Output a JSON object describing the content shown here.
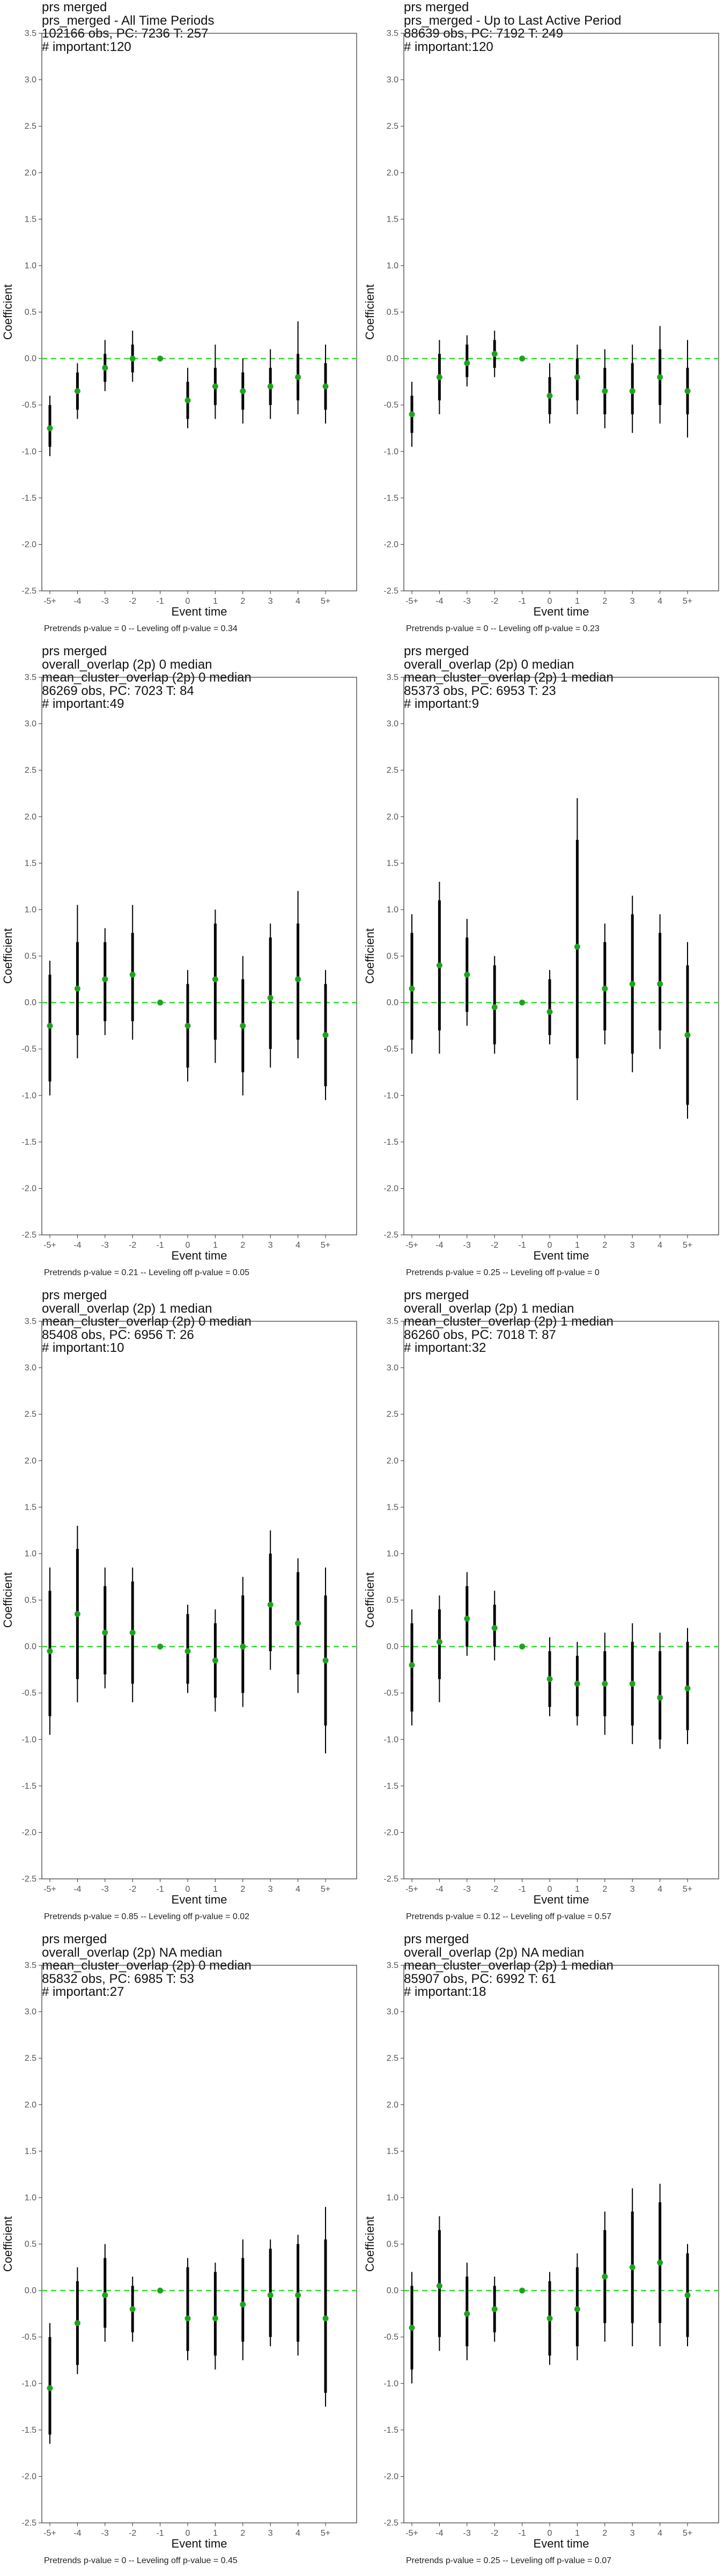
{
  "chart_data": [
    {
      "type": "scatter",
      "subtype": "event-study-coefficient-plot",
      "title_lines": [
        "prs merged",
        "prs_merged - All Time Periods",
        "102166 obs, PC: 7236 T: 257",
        "# important:120"
      ],
      "caption": "Pretrends p-value = 0 -- Leveling off p-value = 0.34",
      "xlabel": "Event time",
      "ylabel": "Coefficient",
      "categories": [
        "-5+",
        "-4",
        "-3",
        "-2",
        "-1",
        "0",
        "1",
        "2",
        "3",
        "4",
        "5+"
      ],
      "ylim": [
        -2.5,
        3.5
      ],
      "yticks": [
        "3.5",
        "3.0",
        "2.5",
        "2.0",
        "1.5",
        "1.0",
        "0.5",
        "0.0",
        "-0.5",
        "-1.0",
        "-1.5",
        "-2.0",
        "-2.5"
      ],
      "reference_line": 0,
      "estimates": [
        -0.75,
        -0.35,
        -0.1,
        0.0,
        0.0,
        -0.45,
        -0.3,
        -0.35,
        -0.3,
        -0.2,
        -0.3
      ],
      "ci_inner": [
        [
          -0.95,
          -0.5
        ],
        [
          -0.55,
          -0.15
        ],
        [
          -0.25,
          0.05
        ],
        [
          -0.15,
          0.15
        ],
        [
          0.0,
          0.0
        ],
        [
          -0.65,
          -0.25
        ],
        [
          -0.5,
          -0.1
        ],
        [
          -0.55,
          -0.15
        ],
        [
          -0.5,
          -0.1
        ],
        [
          -0.45,
          0.05
        ],
        [
          -0.55,
          -0.05
        ]
      ],
      "ci_outer": [
        [
          -1.05,
          -0.4
        ],
        [
          -0.65,
          -0.05
        ],
        [
          -0.35,
          0.2
        ],
        [
          -0.25,
          0.3
        ],
        [
          0.0,
          0.0
        ],
        [
          -0.75,
          -0.1
        ],
        [
          -0.65,
          0.15
        ],
        [
          -0.7,
          0.0
        ],
        [
          -0.65,
          0.1
        ],
        [
          -0.6,
          0.4
        ],
        [
          -0.7,
          0.15
        ]
      ]
    },
    {
      "type": "scatter",
      "subtype": "event-study-coefficient-plot",
      "title_lines": [
        "prs merged",
        "prs_merged - Up to Last Active Period",
        "88639 obs, PC: 7192 T: 249",
        "# important:120"
      ],
      "caption": "Pretrends p-value = 0 -- Leveling off p-value = 0.23",
      "xlabel": "Event time",
      "ylabel": "Coefficient",
      "categories": [
        "-5+",
        "-4",
        "-3",
        "-2",
        "-1",
        "0",
        "1",
        "2",
        "3",
        "4",
        "5+"
      ],
      "ylim": [
        -2.5,
        3.5
      ],
      "yticks": [
        "3.5",
        "3.0",
        "2.5",
        "2.0",
        "1.5",
        "1.0",
        "0.5",
        "0.0",
        "-0.5",
        "-1.0",
        "-1.5",
        "-2.0",
        "-2.5"
      ],
      "reference_line": 0,
      "estimates": [
        -0.6,
        -0.2,
        -0.05,
        0.05,
        0.0,
        -0.4,
        -0.2,
        -0.35,
        -0.35,
        -0.2,
        -0.35
      ],
      "ci_inner": [
        [
          -0.8,
          -0.4
        ],
        [
          -0.45,
          0.05
        ],
        [
          -0.2,
          0.15
        ],
        [
          -0.1,
          0.2
        ],
        [
          0.0,
          0.0
        ],
        [
          -0.6,
          -0.2
        ],
        [
          -0.45,
          0.0
        ],
        [
          -0.6,
          -0.1
        ],
        [
          -0.6,
          -0.05
        ],
        [
          -0.5,
          0.1
        ],
        [
          -0.6,
          -0.1
        ]
      ],
      "ci_outer": [
        [
          -0.95,
          -0.25
        ],
        [
          -0.6,
          0.2
        ],
        [
          -0.3,
          0.25
        ],
        [
          -0.2,
          0.3
        ],
        [
          0.0,
          0.0
        ],
        [
          -0.7,
          -0.05
        ],
        [
          -0.6,
          0.15
        ],
        [
          -0.75,
          0.1
        ],
        [
          -0.8,
          0.15
        ],
        [
          -0.7,
          0.35
        ],
        [
          -0.85,
          0.2
        ]
      ]
    },
    {
      "type": "scatter",
      "subtype": "event-study-coefficient-plot",
      "title_lines": [
        "prs merged",
        "overall_overlap (2p) 0 median",
        "mean_cluster_overlap (2p) 0 median",
        "86269 obs, PC: 7023 T: 84",
        "# important:49"
      ],
      "caption": "Pretrends p-value = 0.21 -- Leveling off p-value = 0.05",
      "xlabel": "Event time",
      "ylabel": "Coefficient",
      "categories": [
        "-5+",
        "-4",
        "-3",
        "-2",
        "-1",
        "0",
        "1",
        "2",
        "3",
        "4",
        "5+"
      ],
      "ylim": [
        -2.5,
        3.5
      ],
      "yticks": [
        "3.5",
        "3.0",
        "2.5",
        "2.0",
        "1.5",
        "1.0",
        "0.5",
        "0.0",
        "-0.5",
        "-1.0",
        "-1.5",
        "-2.0",
        "-2.5"
      ],
      "reference_line": 0,
      "estimates": [
        -0.25,
        0.15,
        0.25,
        0.3,
        0.0,
        -0.25,
        0.25,
        -0.25,
        0.05,
        0.25,
        -0.35
      ],
      "ci_inner": [
        [
          -0.85,
          0.3
        ],
        [
          -0.35,
          0.65
        ],
        [
          -0.2,
          0.65
        ],
        [
          -0.2,
          0.75
        ],
        [
          0.0,
          0.0
        ],
        [
          -0.7,
          0.2
        ],
        [
          -0.4,
          0.85
        ],
        [
          -0.75,
          0.25
        ],
        [
          -0.5,
          0.7
        ],
        [
          -0.4,
          0.85
        ],
        [
          -0.9,
          0.2
        ]
      ],
      "ci_outer": [
        [
          -1.0,
          0.45
        ],
        [
          -0.6,
          1.05
        ],
        [
          -0.35,
          0.8
        ],
        [
          -0.4,
          1.05
        ],
        [
          0.0,
          0.0
        ],
        [
          -0.85,
          0.35
        ],
        [
          -0.65,
          1.0
        ],
        [
          -1.0,
          0.5
        ],
        [
          -0.7,
          0.85
        ],
        [
          -0.6,
          1.2
        ],
        [
          -1.05,
          0.35
        ]
      ]
    },
    {
      "type": "scatter",
      "subtype": "event-study-coefficient-plot",
      "title_lines": [
        "prs merged",
        "overall_overlap (2p) 0 median",
        "mean_cluster_overlap (2p) 1 median",
        "85373 obs, PC: 6953 T: 23",
        "# important:9"
      ],
      "caption": "Pretrends p-value = 0.25 -- Leveling off p-value = 0",
      "xlabel": "Event time",
      "ylabel": "Coefficient",
      "categories": [
        "-5+",
        "-4",
        "-3",
        "-2",
        "-1",
        "0",
        "1",
        "2",
        "3",
        "4",
        "5+"
      ],
      "ylim": [
        -2.5,
        3.5
      ],
      "yticks": [
        "3.5",
        "3.0",
        "2.5",
        "2.0",
        "1.5",
        "1.0",
        "0.5",
        "0.0",
        "-0.5",
        "-1.0",
        "-1.5",
        "-2.0",
        "-2.5"
      ],
      "reference_line": 0,
      "estimates": [
        0.15,
        0.4,
        0.3,
        -0.05,
        0.0,
        -0.1,
        0.6,
        0.15,
        0.2,
        0.2,
        -0.35
      ],
      "ci_inner": [
        [
          -0.4,
          0.75
        ],
        [
          -0.3,
          1.1
        ],
        [
          -0.1,
          0.7
        ],
        [
          -0.45,
          0.4
        ],
        [
          0.0,
          0.0
        ],
        [
          -0.35,
          0.25
        ],
        [
          -0.6,
          1.75
        ],
        [
          -0.3,
          0.65
        ],
        [
          -0.55,
          0.95
        ],
        [
          -0.3,
          0.75
        ],
        [
          -1.1,
          0.4
        ]
      ],
      "ci_outer": [
        [
          -0.55,
          0.95
        ],
        [
          -0.55,
          1.3
        ],
        [
          -0.25,
          0.9
        ],
        [
          -0.55,
          0.5
        ],
        [
          0.0,
          0.0
        ],
        [
          -0.45,
          0.35
        ],
        [
          -1.05,
          2.2
        ],
        [
          -0.45,
          0.85
        ],
        [
          -0.75,
          1.15
        ],
        [
          -0.5,
          0.95
        ],
        [
          -1.25,
          0.65
        ]
      ]
    },
    {
      "type": "scatter",
      "subtype": "event-study-coefficient-plot",
      "title_lines": [
        "prs merged",
        "overall_overlap (2p) 1 median",
        "mean_cluster_overlap (2p) 0 median",
        "85408 obs, PC: 6956 T: 26",
        "# important:10"
      ],
      "caption": "Pretrends p-value = 0.85 -- Leveling off p-value = 0.02",
      "xlabel": "Event time",
      "ylabel": "Coefficient",
      "categories": [
        "-5+",
        "-4",
        "-3",
        "-2",
        "-1",
        "0",
        "1",
        "2",
        "3",
        "4",
        "5+"
      ],
      "ylim": [
        -2.5,
        3.5
      ],
      "yticks": [
        "3.5",
        "3.0",
        "2.5",
        "2.0",
        "1.5",
        "1.0",
        "0.5",
        "0.0",
        "-0.5",
        "-1.0",
        "-1.5",
        "-2.0",
        "-2.5"
      ],
      "reference_line": 0,
      "estimates": [
        -0.05,
        0.35,
        0.15,
        0.15,
        0.0,
        -0.05,
        -0.15,
        0.0,
        0.45,
        0.25,
        -0.15
      ],
      "ci_inner": [
        [
          -0.75,
          0.6
        ],
        [
          -0.35,
          1.05
        ],
        [
          -0.3,
          0.65
        ],
        [
          -0.4,
          0.7
        ],
        [
          0.0,
          0.0
        ],
        [
          -0.4,
          0.35
        ],
        [
          -0.55,
          0.25
        ],
        [
          -0.5,
          0.55
        ],
        [
          -0.05,
          1.0
        ],
        [
          -0.3,
          0.8
        ],
        [
          -0.85,
          0.55
        ]
      ],
      "ci_outer": [
        [
          -0.95,
          0.85
        ],
        [
          -0.6,
          1.3
        ],
        [
          -0.45,
          0.85
        ],
        [
          -0.6,
          0.85
        ],
        [
          0.0,
          0.0
        ],
        [
          -0.5,
          0.45
        ],
        [
          -0.7,
          0.4
        ],
        [
          -0.65,
          0.75
        ],
        [
          -0.25,
          1.25
        ],
        [
          -0.5,
          0.95
        ],
        [
          -1.15,
          0.85
        ]
      ]
    },
    {
      "type": "scatter",
      "subtype": "event-study-coefficient-plot",
      "title_lines": [
        "prs merged",
        "overall_overlap (2p) 1 median",
        "mean_cluster_overlap (2p) 1 median",
        "86260 obs, PC: 7018 T: 87",
        "# important:32"
      ],
      "caption": "Pretrends p-value = 0.12 -- Leveling off p-value = 0.57",
      "xlabel": "Event time",
      "ylabel": "Coefficient",
      "categories": [
        "-5+",
        "-4",
        "-3",
        "-2",
        "-1",
        "0",
        "1",
        "2",
        "3",
        "4",
        "5+"
      ],
      "ylim": [
        -2.5,
        3.5
      ],
      "yticks": [
        "3.5",
        "3.0",
        "2.5",
        "2.0",
        "1.5",
        "1.0",
        "0.5",
        "0.0",
        "-0.5",
        "-1.0",
        "-1.5",
        "-2.0",
        "-2.5"
      ],
      "reference_line": 0,
      "estimates": [
        -0.2,
        0.05,
        0.3,
        0.2,
        0.0,
        -0.35,
        -0.4,
        -0.4,
        -0.4,
        -0.55,
        -0.45
      ],
      "ci_inner": [
        [
          -0.7,
          0.25
        ],
        [
          -0.35,
          0.4
        ],
        [
          0.0,
          0.65
        ],
        [
          0.0,
          0.45
        ],
        [
          0.0,
          0.0
        ],
        [
          -0.65,
          -0.05
        ],
        [
          -0.75,
          -0.1
        ],
        [
          -0.75,
          -0.05
        ],
        [
          -0.85,
          0.05
        ],
        [
          -1.0,
          -0.05
        ],
        [
          -0.9,
          0.05
        ]
      ],
      "ci_outer": [
        [
          -0.85,
          0.4
        ],
        [
          -0.6,
          0.55
        ],
        [
          -0.1,
          0.8
        ],
        [
          -0.15,
          0.6
        ],
        [
          0.0,
          0.0
        ],
        [
          -0.75,
          0.1
        ],
        [
          -0.85,
          0.05
        ],
        [
          -0.95,
          0.15
        ],
        [
          -1.05,
          0.25
        ],
        [
          -1.1,
          0.15
        ],
        [
          -1.05,
          0.2
        ]
      ]
    },
    {
      "type": "scatter",
      "subtype": "event-study-coefficient-plot",
      "title_lines": [
        "prs merged",
        "overall_overlap (2p) NA median",
        "mean_cluster_overlap (2p) 0 median",
        "85832 obs, PC: 6985 T: 53",
        "# important:27"
      ],
      "caption": "Pretrends p-value = 0 -- Leveling off p-value = 0.45",
      "xlabel": "Event time",
      "ylabel": "Coefficient",
      "categories": [
        "-5+",
        "-4",
        "-3",
        "-2",
        "-1",
        "0",
        "1",
        "2",
        "3",
        "4",
        "5+"
      ],
      "ylim": [
        -2.5,
        3.5
      ],
      "yticks": [
        "3.5",
        "3.0",
        "2.5",
        "2.0",
        "1.5",
        "1.0",
        "0.5",
        "0.0",
        "-0.5",
        "-1.0",
        "-1.5",
        "-2.0",
        "-2.5"
      ],
      "reference_line": 0,
      "estimates": [
        -1.05,
        -0.35,
        -0.05,
        -0.2,
        0.0,
        -0.3,
        -0.3,
        -0.15,
        -0.05,
        -0.05,
        -0.3
      ],
      "ci_inner": [
        [
          -1.55,
          -0.5
        ],
        [
          -0.8,
          0.1
        ],
        [
          -0.4,
          0.35
        ],
        [
          -0.45,
          0.05
        ],
        [
          0.0,
          0.0
        ],
        [
          -0.65,
          0.25
        ],
        [
          -0.7,
          0.2
        ],
        [
          -0.55,
          0.35
        ],
        [
          -0.5,
          0.45
        ],
        [
          -0.55,
          0.5
        ],
        [
          -1.1,
          0.55
        ]
      ],
      "ci_outer": [
        [
          -1.65,
          -0.35
        ],
        [
          -0.9,
          0.25
        ],
        [
          -0.55,
          0.5
        ],
        [
          -0.55,
          0.15
        ],
        [
          0.0,
          0.0
        ],
        [
          -0.75,
          0.35
        ],
        [
          -0.85,
          0.3
        ],
        [
          -0.75,
          0.55
        ],
        [
          -0.6,
          0.55
        ],
        [
          -0.7,
          0.6
        ],
        [
          -1.25,
          0.9
        ]
      ]
    },
    {
      "type": "scatter",
      "subtype": "event-study-coefficient-plot",
      "title_lines": [
        "prs merged",
        "overall_overlap (2p) NA median",
        "mean_cluster_overlap (2p) 1 median",
        "85907 obs, PC: 6992 T: 61",
        "# important:18"
      ],
      "caption": "Pretrends p-value = 0.25 -- Leveling off p-value = 0.07",
      "xlabel": "Event time",
      "ylabel": "Coefficient",
      "categories": [
        "-5+",
        "-4",
        "-3",
        "-2",
        "-1",
        "0",
        "1",
        "2",
        "3",
        "4",
        "5+"
      ],
      "ylim": [
        -2.5,
        3.5
      ],
      "yticks": [
        "3.5",
        "3.0",
        "2.5",
        "2.0",
        "1.5",
        "1.0",
        "0.5",
        "0.0",
        "-0.5",
        "-1.0",
        "-1.5",
        "-2.0",
        "-2.5"
      ],
      "reference_line": 0,
      "estimates": [
        -0.4,
        0.05,
        -0.25,
        -0.2,
        0.0,
        -0.3,
        -0.2,
        0.15,
        0.25,
        0.3,
        -0.05
      ],
      "ci_inner": [
        [
          -0.85,
          0.05
        ],
        [
          -0.5,
          0.65
        ],
        [
          -0.6,
          0.15
        ],
        [
          -0.45,
          0.05
        ],
        [
          0.0,
          0.0
        ],
        [
          -0.7,
          0.1
        ],
        [
          -0.6,
          0.25
        ],
        [
          -0.35,
          0.65
        ],
        [
          -0.35,
          0.85
        ],
        [
          -0.35,
          0.95
        ],
        [
          -0.5,
          0.4
        ]
      ],
      "ci_outer": [
        [
          -1.0,
          0.2
        ],
        [
          -0.65,
          0.8
        ],
        [
          -0.75,
          0.3
        ],
        [
          -0.55,
          0.15
        ],
        [
          0.0,
          0.0
        ],
        [
          -0.8,
          0.2
        ],
        [
          -0.75,
          0.4
        ],
        [
          -0.55,
          0.85
        ],
        [
          -0.6,
          1.1
        ],
        [
          -0.6,
          1.15
        ],
        [
          -0.6,
          0.5
        ]
      ]
    }
  ],
  "colors": {
    "point": "#1fa31f",
    "reference_line": "#33dd33",
    "error_bar": "#000000",
    "panel_border": "#333333",
    "tick_label": "#555555"
  }
}
